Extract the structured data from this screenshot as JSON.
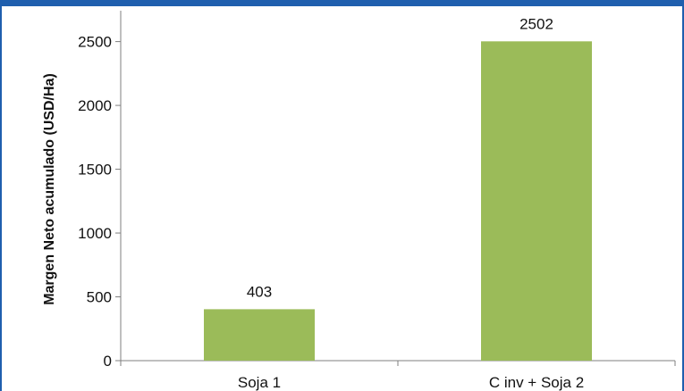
{
  "chart_data": {
    "type": "bar",
    "title": "",
    "xlabel": "",
    "ylabel": "Margen Neto acumulado (USD/Ha)",
    "categories": [
      "Soja 1",
      "C inv + Soja 2"
    ],
    "values": [
      403,
      2502
    ],
    "data_labels": [
      "403",
      "2502"
    ],
    "ylim": [
      0,
      2700
    ],
    "yticks": [
      0,
      500,
      1000,
      1500,
      2000,
      2500
    ],
    "grid": false,
    "legend": "none",
    "bar_color": "#9bbb59",
    "frame_color": "#1f5fae"
  }
}
